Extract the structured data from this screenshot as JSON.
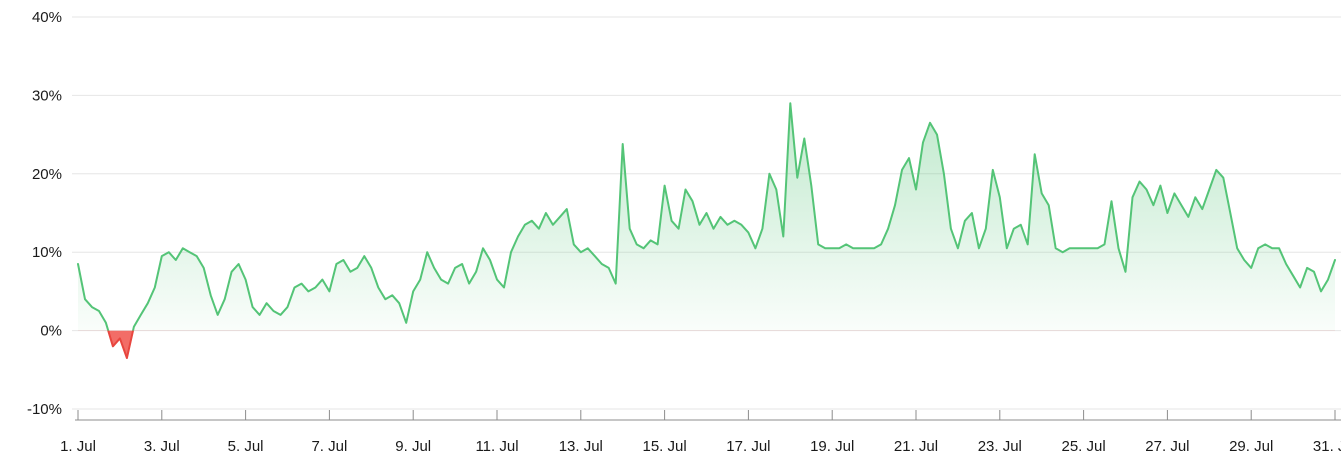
{
  "chart_data": {
    "type": "area",
    "title": "",
    "xlabel": "",
    "ylabel": "",
    "legend": "none",
    "grid": true,
    "ylim": [
      -10,
      40
    ],
    "points_per_day": 6,
    "y_ticks": [
      {
        "value": 40,
        "label": "40%"
      },
      {
        "value": 30,
        "label": "30%"
      },
      {
        "value": 20,
        "label": "20%"
      },
      {
        "value": 10,
        "label": "10%"
      },
      {
        "value": 0,
        "label": "0%"
      },
      {
        "value": -10,
        "label": "-10%"
      }
    ],
    "x_ticks": [
      {
        "day": 1,
        "label": "1. Jul"
      },
      {
        "day": 3,
        "label": "3. Jul"
      },
      {
        "day": 5,
        "label": "5. Jul"
      },
      {
        "day": 7,
        "label": "7. Jul"
      },
      {
        "day": 9,
        "label": "9. Jul"
      },
      {
        "day": 11,
        "label": "11. Jul"
      },
      {
        "day": 13,
        "label": "13. Jul"
      },
      {
        "day": 15,
        "label": "15. Jul"
      },
      {
        "day": 17,
        "label": "17. Jul"
      },
      {
        "day": 19,
        "label": "19. Jul"
      },
      {
        "day": 21,
        "label": "21. Jul"
      },
      {
        "day": 23,
        "label": "23. Jul"
      },
      {
        "day": 25,
        "label": "25. Jul"
      },
      {
        "day": 27,
        "label": "27. Jul"
      },
      {
        "day": 29,
        "label": "29. Jul"
      },
      {
        "day": 31,
        "label": "31. Jul"
      }
    ],
    "values": [
      8.5,
      4.0,
      3.0,
      2.5,
      1.0,
      -2.0,
      -1.0,
      -3.5,
      0.5,
      2.0,
      3.5,
      5.5,
      9.5,
      10.0,
      9.0,
      10.5,
      10.0,
      9.5,
      8.0,
      4.5,
      2.0,
      4.0,
      7.5,
      8.5,
      6.5,
      3.0,
      2.0,
      3.5,
      2.5,
      2.0,
      3.0,
      5.5,
      6.0,
      5.0,
      5.5,
      6.5,
      5.0,
      8.5,
      9.0,
      7.5,
      8.0,
      9.5,
      8.0,
      5.5,
      4.0,
      4.5,
      3.5,
      1.0,
      5.0,
      6.5,
      10.0,
      8.0,
      6.5,
      6.0,
      8.0,
      8.5,
      6.0,
      7.5,
      10.5,
      9.0,
      6.5,
      5.5,
      10.0,
      12.0,
      13.5,
      14.0,
      13.0,
      15.0,
      13.5,
      14.5,
      15.5,
      11.0,
      10.0,
      10.5,
      9.5,
      8.5,
      8.0,
      6.0,
      23.8,
      13.0,
      11.0,
      10.5,
      11.5,
      11.0,
      18.5,
      14.0,
      13.0,
      18.0,
      16.5,
      13.5,
      15.0,
      13.0,
      14.5,
      13.5,
      14.0,
      13.5,
      12.5,
      10.5,
      13.0,
      20.0,
      18.0,
      12.0,
      29.0,
      19.5,
      24.5,
      18.5,
      11.0,
      10.5,
      10.5,
      10.5,
      11.0,
      10.5,
      10.5,
      10.5,
      10.5,
      11.0,
      13.0,
      16.0,
      20.5,
      22.0,
      18.0,
      24.0,
      26.5,
      25.0,
      20.0,
      13.0,
      10.5,
      14.0,
      15.0,
      10.5,
      13.0,
      20.5,
      17.0,
      10.5,
      13.0,
      13.5,
      11.0,
      22.5,
      17.5,
      16.0,
      10.5,
      10.0,
      10.5,
      10.5,
      10.5,
      10.5,
      10.5,
      11.0,
      16.5,
      10.5,
      7.5,
      17.0,
      19.0,
      18.0,
      16.0,
      18.5,
      15.0,
      17.5,
      16.0,
      14.5,
      17.0,
      15.5,
      18.0,
      20.5,
      19.5,
      15.0,
      10.5,
      9.0,
      8.0,
      10.5,
      11.0,
      10.5,
      10.5,
      8.5,
      7.0,
      5.5,
      8.0,
      7.5,
      5.0,
      6.5,
      9.0
    ],
    "colors": {
      "positive_line": "#54c477",
      "positive_fill_top": "rgba(84,196,119,0.50)",
      "positive_fill_bottom": "rgba(84,196,119,0.03)",
      "negative_line": "#e8463f",
      "negative_fill": "rgba(240,84,76,0.85)",
      "grid": "#e6e6e6",
      "axis": "#8c8c8c",
      "label": "#1a1a1a"
    }
  }
}
